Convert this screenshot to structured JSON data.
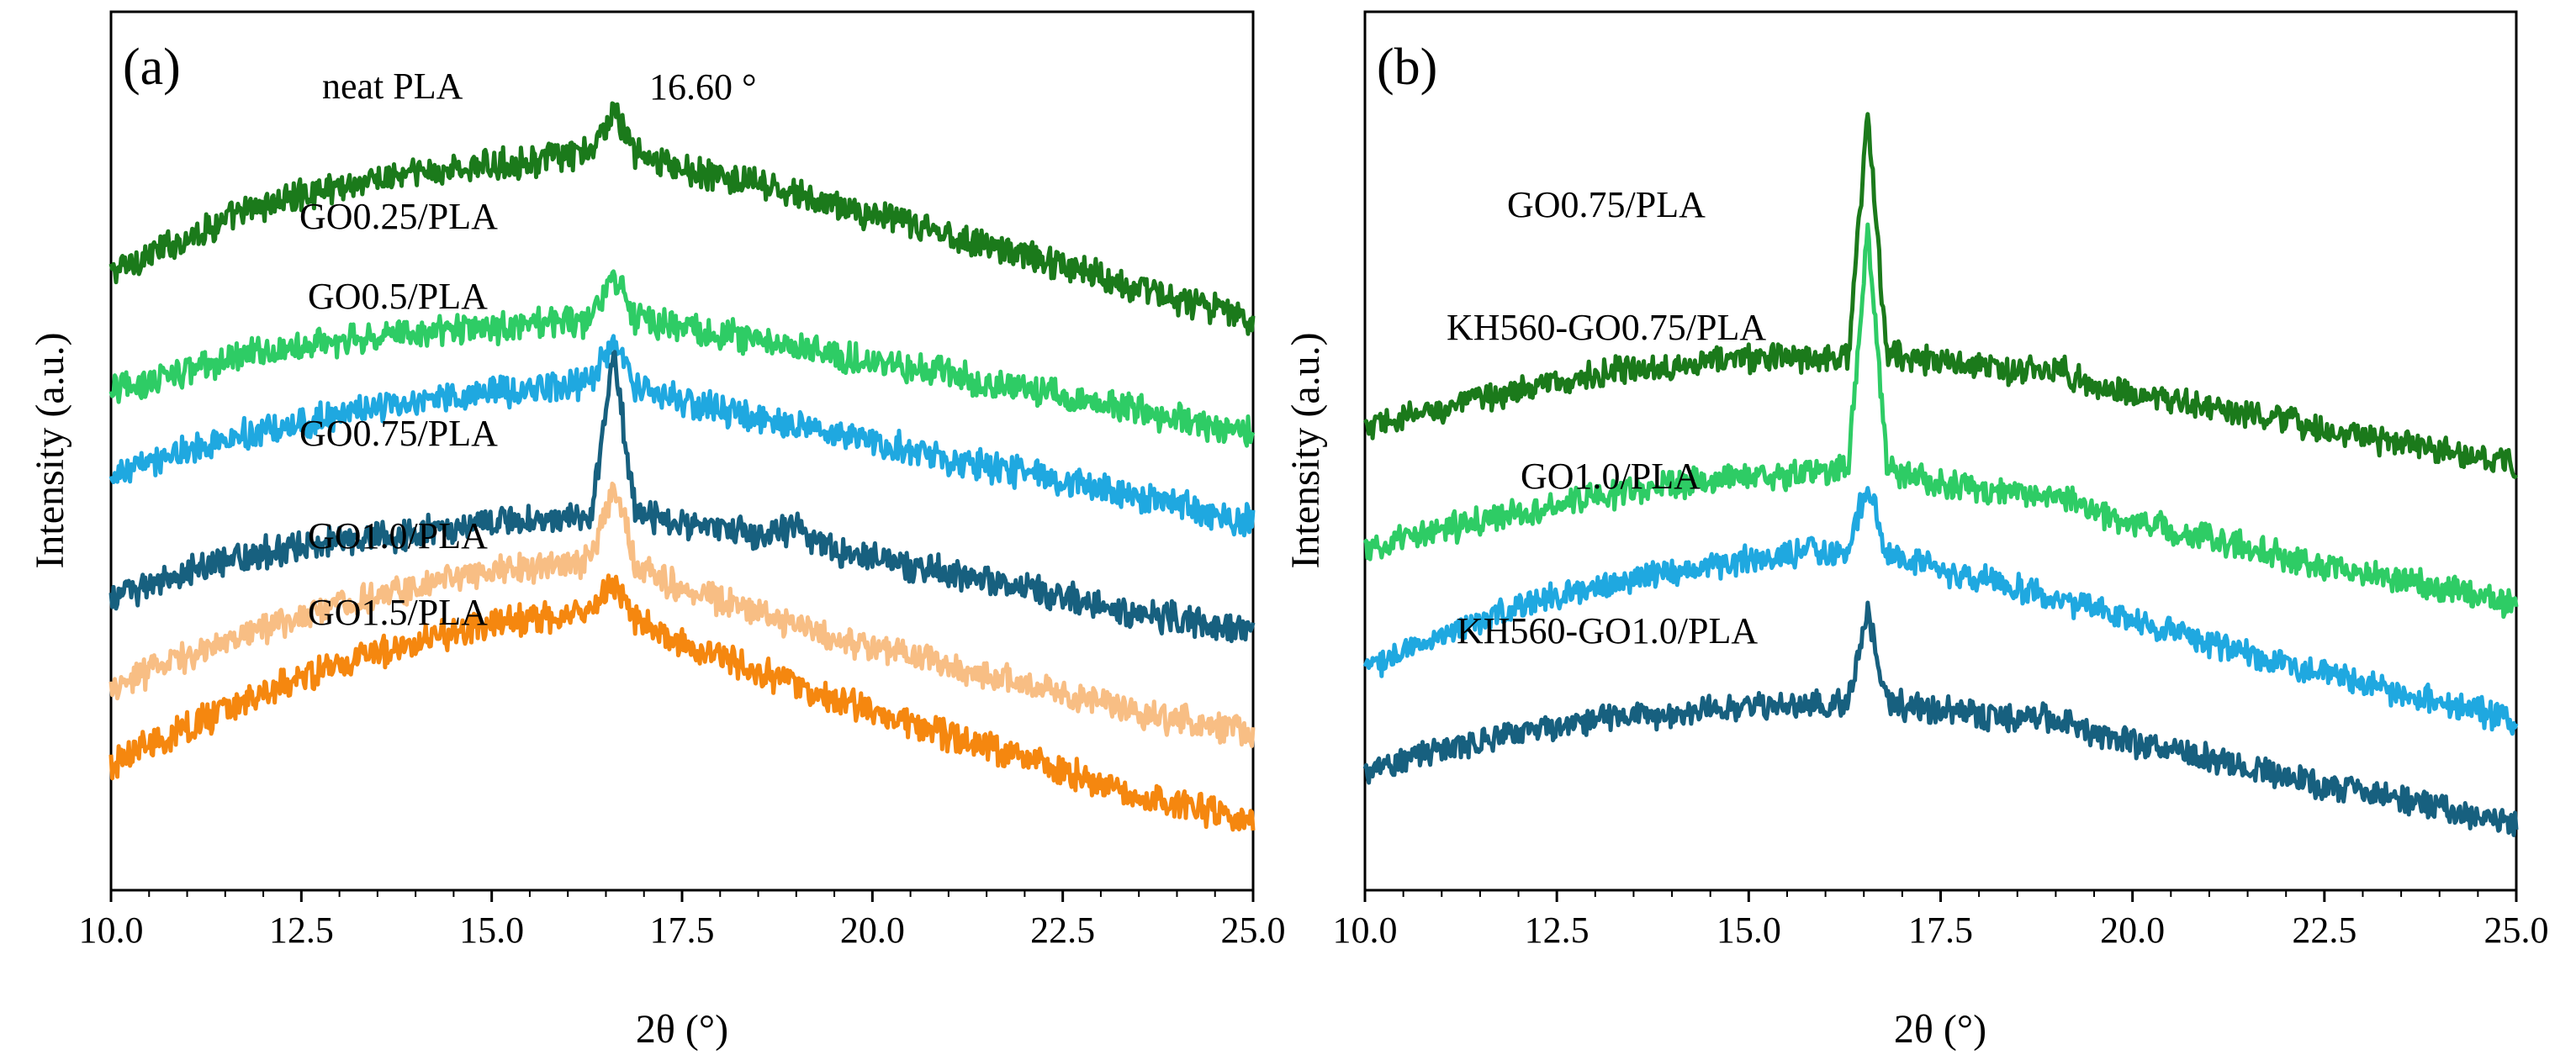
{
  "chart_data": [
    {
      "type": "line",
      "panel_label": "(a)",
      "xlabel": "2θ (°)",
      "ylabel": "Intensity (a.u.)",
      "xlim": [
        10.0,
        25.0
      ],
      "x_ticks": [
        10.0,
        12.5,
        15.0,
        17.5,
        20.0,
        22.5,
        25.0
      ],
      "x_tick_labels": [
        "10.0",
        "12.5",
        "15.0",
        "17.5",
        "20.0",
        "22.5",
        "25.0"
      ],
      "y_ticks": false,
      "annotations": [
        {
          "text": "16.60 °",
          "x": 16.6
        }
      ],
      "series": [
        {
          "name": "neat PLA",
          "color": "#1b7a1b",
          "offset": 6.2,
          "x": [
            10.0,
            11.0,
            12.0,
            13.0,
            14.0,
            15.0,
            15.8,
            16.3,
            16.6,
            16.9,
            17.5,
            18.5,
            19.5,
            20.5,
            21.5,
            22.5,
            23.5,
            25.0
          ],
          "y": [
            0.0,
            0.45,
            0.85,
            1.1,
            1.25,
            1.35,
            1.45,
            1.5,
            2.05,
            1.5,
            1.3,
            1.1,
            0.85,
            0.6,
            0.35,
            0.1,
            -0.2,
            -0.6
          ]
        },
        {
          "name": "GO0.25/PLA",
          "color": "#2ecc65",
          "offset": 4.7,
          "x": [
            10.0,
            11.0,
            12.0,
            13.0,
            14.0,
            15.0,
            15.8,
            16.3,
            16.6,
            16.9,
            17.5,
            18.5,
            19.5,
            20.5,
            21.5,
            22.5,
            23.5,
            25.0
          ],
          "y": [
            0.0,
            0.25,
            0.5,
            0.65,
            0.75,
            0.8,
            0.85,
            0.9,
            1.45,
            0.9,
            0.8,
            0.65,
            0.45,
            0.3,
            0.1,
            -0.05,
            -0.25,
            -0.55
          ]
        },
        {
          "name": "GO0.5/PLA",
          "color": "#1fa8e0",
          "offset": 3.6,
          "x": [
            10.0,
            11.0,
            12.0,
            13.0,
            14.0,
            15.0,
            15.8,
            16.3,
            16.6,
            16.9,
            17.5,
            18.5,
            19.5,
            20.5,
            21.5,
            22.5,
            23.5,
            25.0
          ],
          "y": [
            0.0,
            0.35,
            0.6,
            0.8,
            0.95,
            1.1,
            1.15,
            1.2,
            1.75,
            1.15,
            0.95,
            0.75,
            0.55,
            0.35,
            0.15,
            -0.05,
            -0.25,
            -0.55
          ]
        },
        {
          "name": "GO0.75/PLA",
          "color": "#17607f",
          "offset": 2.1,
          "x": [
            10.0,
            11.0,
            12.0,
            13.0,
            14.0,
            15.0,
            15.8,
            16.3,
            16.6,
            16.9,
            17.5,
            18.5,
            19.0,
            19.5,
            20.5,
            21.5,
            22.5,
            23.5,
            25.0
          ],
          "y": [
            0.0,
            0.3,
            0.55,
            0.7,
            0.8,
            0.95,
            0.95,
            1.0,
            3.05,
            1.05,
            0.9,
            0.8,
            0.85,
            0.6,
            0.4,
            0.2,
            0.0,
            -0.2,
            -0.45
          ]
        },
        {
          "name": "GO1.0/PLA",
          "color": "#f8be84",
          "offset": 0.95,
          "x": [
            10.0,
            11.0,
            12.0,
            13.0,
            14.0,
            15.0,
            15.8,
            16.3,
            16.6,
            16.9,
            17.5,
            18.5,
            19.5,
            20.5,
            21.5,
            22.5,
            23.5,
            25.0
          ],
          "y": [
            0.0,
            0.4,
            0.75,
            1.05,
            1.3,
            1.45,
            1.55,
            1.6,
            2.55,
            1.55,
            1.25,
            0.95,
            0.65,
            0.4,
            0.15,
            -0.1,
            -0.3,
            -0.6
          ]
        },
        {
          "name": "GO1.5/PLA",
          "color": "#f5870f",
          "offset": 0.0,
          "x": [
            10.0,
            11.0,
            12.0,
            13.0,
            14.0,
            15.0,
            15.8,
            16.3,
            16.6,
            16.9,
            17.5,
            18.5,
            19.5,
            20.5,
            21.5,
            22.5,
            23.5,
            25.0
          ],
          "y": [
            0.0,
            0.45,
            0.9,
            1.25,
            1.55,
            1.75,
            1.85,
            1.9,
            2.3,
            1.8,
            1.5,
            1.15,
            0.8,
            0.5,
            0.2,
            -0.1,
            -0.4,
            -0.75
          ]
        }
      ]
    },
    {
      "type": "line",
      "panel_label": "(b)",
      "xlabel": "2θ (°)",
      "ylabel": "Intensity (a.u.)",
      "xlim": [
        10.0,
        25.0
      ],
      "x_ticks": [
        10.0,
        12.5,
        15.0,
        17.5,
        20.0,
        22.5,
        25.0
      ],
      "x_tick_labels": [
        "10.0",
        "12.5",
        "15.0",
        "17.5",
        "20.0",
        "22.5",
        "25.0"
      ],
      "y_ticks": false,
      "series": [
        {
          "name": "GO0.75/PLA",
          "color": "#1b7a1b",
          "offset": 4.75,
          "x": [
            10.0,
            11.0,
            12.0,
            13.0,
            14.0,
            15.0,
            15.8,
            16.3,
            16.55,
            16.8,
            17.5,
            18.5,
            19.0,
            19.5,
            20.5,
            21.5,
            22.5,
            23.5,
            25.0
          ],
          "y": [
            0.0,
            0.3,
            0.55,
            0.75,
            0.9,
            1.0,
            1.0,
            1.05,
            4.35,
            1.05,
            0.95,
            0.8,
            0.85,
            0.6,
            0.4,
            0.2,
            0.0,
            -0.2,
            -0.5
          ]
        },
        {
          "name": "KH560-GO0.75/PLA",
          "color": "#2ecc65",
          "offset": 3.05,
          "x": [
            10.0,
            11.0,
            12.0,
            13.0,
            14.0,
            15.0,
            15.8,
            16.3,
            16.55,
            16.8,
            17.5,
            18.5,
            19.0,
            19.5,
            20.5,
            21.5,
            22.5,
            23.5,
            25.0
          ],
          "y": [
            0.0,
            0.3,
            0.55,
            0.75,
            0.95,
            1.05,
            1.1,
            1.15,
            4.5,
            1.15,
            0.95,
            0.8,
            0.85,
            0.55,
            0.3,
            0.05,
            -0.2,
            -0.4,
            -0.75
          ]
        },
        {
          "name": "GO1.0/PLA",
          "color": "#1fa8e0",
          "offset": 1.45,
          "x": [
            10.0,
            11.0,
            12.0,
            13.0,
            14.0,
            15.0,
            15.8,
            16.3,
            16.55,
            16.8,
            17.5,
            18.5,
            19.5,
            20.5,
            21.5,
            22.5,
            23.5,
            25.0
          ],
          "y": [
            0.0,
            0.4,
            0.85,
            1.1,
            1.3,
            1.5,
            1.6,
            1.6,
            2.6,
            1.55,
            1.35,
            1.1,
            0.8,
            0.5,
            0.2,
            -0.1,
            -0.35,
            -0.75
          ]
        },
        {
          "name": "KH560-GO1.0/PLA",
          "color": "#17607f",
          "offset": 0.0,
          "x": [
            10.0,
            11.0,
            12.0,
            13.0,
            14.0,
            15.0,
            15.8,
            16.3,
            16.55,
            16.8,
            17.5,
            18.5,
            19.0,
            19.5,
            20.5,
            21.5,
            22.5,
            23.5,
            25.0
          ],
          "y": [
            0.0,
            0.3,
            0.55,
            0.7,
            0.8,
            0.9,
            0.9,
            0.95,
            2.3,
            0.95,
            0.85,
            0.7,
            0.75,
            0.5,
            0.3,
            0.05,
            -0.2,
            -0.4,
            -0.75
          ]
        }
      ]
    }
  ]
}
